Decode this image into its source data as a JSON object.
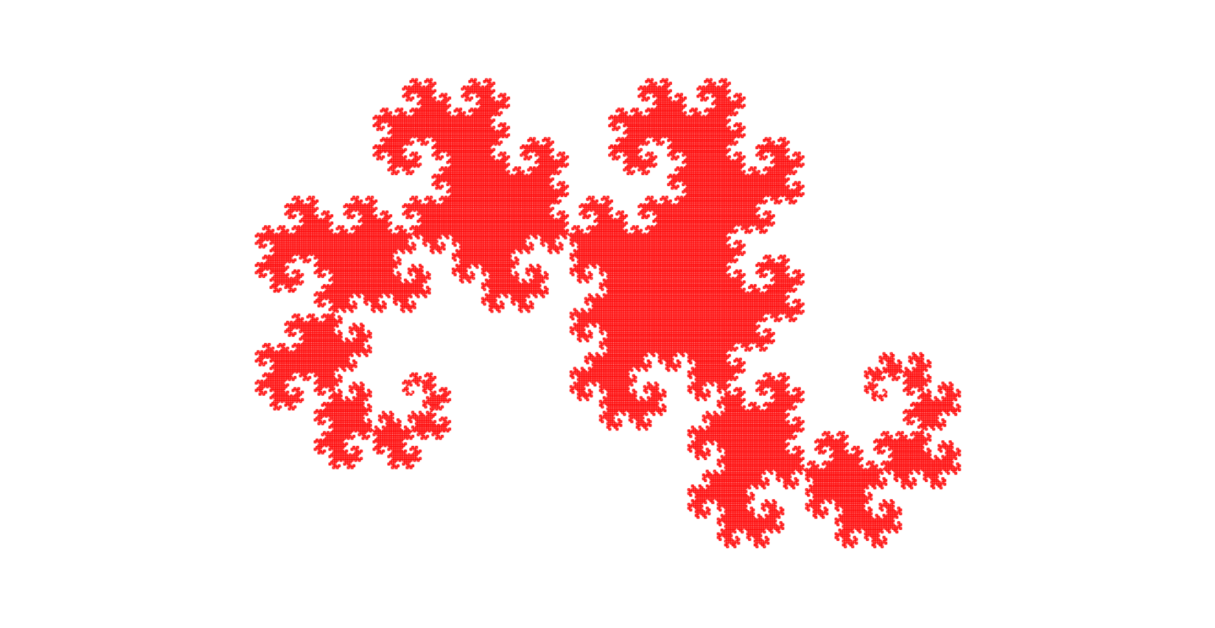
{
  "figure": {
    "kind": "dragon-curve-fractal",
    "background_color": "#ffffff",
    "stroke_color": "#ff0000",
    "iterations": 16
  }
}
